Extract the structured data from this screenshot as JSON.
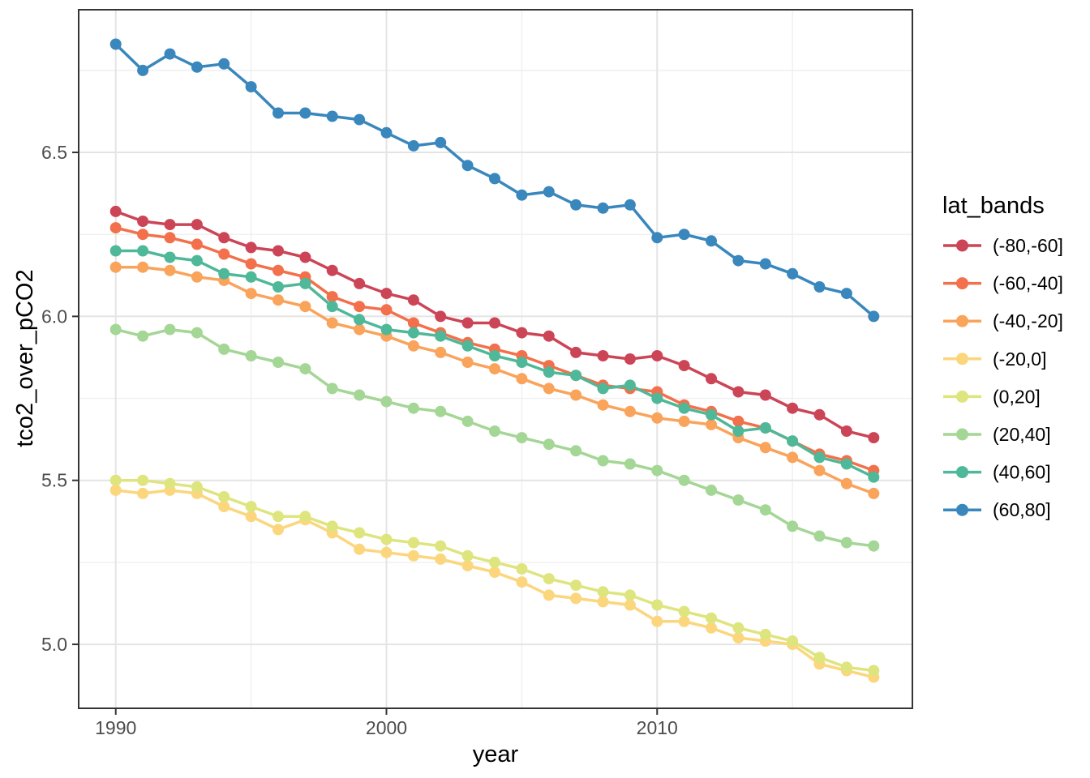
{
  "figure": {
    "xlabel": "year",
    "ylabel": "tco2_over_pCO2"
  },
  "legend": {
    "title": "lat_bands",
    "entries": [
      {
        "label": "(-80,-60]",
        "color": "#CB4557"
      },
      {
        "label": "(-60,-40]",
        "color": "#F2704B"
      },
      {
        "label": "(-40,-20]",
        "color": "#F9A35B"
      },
      {
        "label": "(-20,0]",
        "color": "#FBD67D"
      },
      {
        "label": "(0,20]",
        "color": "#DEE57E"
      },
      {
        "label": "(20,40]",
        "color": "#A4D695"
      },
      {
        "label": "(40,60]",
        "color": "#4FB898"
      },
      {
        "label": "(60,80]",
        "color": "#3987BC"
      }
    ]
  },
  "chart_data": {
    "type": "line",
    "title": "",
    "xlabel": "year",
    "ylabel": "tco2_over_pCO2",
    "legend_title": "lat_bands",
    "legend_position": "right",
    "grid": true,
    "x": [
      1990,
      1991,
      1992,
      1993,
      1994,
      1995,
      1996,
      1997,
      1998,
      1999,
      2000,
      2001,
      2002,
      2003,
      2004,
      2005,
      2006,
      2007,
      2008,
      2009,
      2010,
      2011,
      2012,
      2013,
      2014,
      2015,
      2016,
      2017,
      2018
    ],
    "x_ticks": [
      1990,
      2000,
      2010
    ],
    "x_tick_labels": [
      "1990",
      "2000",
      "2010"
    ],
    "x_minor_ticks": [
      1995,
      2005,
      2015
    ],
    "y_ticks": [
      5.0,
      5.5,
      6.0,
      6.5
    ],
    "y_tick_labels": [
      "5.0",
      "5.5",
      "6.0",
      "6.5"
    ],
    "y_minor_ticks": [
      5.25,
      5.75,
      6.25,
      6.75
    ],
    "xlim": [
      1988.63,
      2019.43
    ],
    "ylim": [
      4.805,
      6.935
    ],
    "series": [
      {
        "name": "(-80,-60]",
        "color": "#CB4557",
        "values": [
          6.32,
          6.29,
          6.28,
          6.28,
          6.24,
          6.21,
          6.2,
          6.18,
          6.14,
          6.1,
          6.07,
          6.05,
          6.0,
          5.98,
          5.98,
          5.95,
          5.94,
          5.89,
          5.88,
          5.87,
          5.88,
          5.85,
          5.81,
          5.77,
          5.76,
          5.72,
          5.7,
          5.65,
          5.63
        ]
      },
      {
        "name": "(-60,-40]",
        "color": "#F2704B",
        "values": [
          6.27,
          6.25,
          6.24,
          6.22,
          6.19,
          6.16,
          6.14,
          6.12,
          6.06,
          6.03,
          6.02,
          5.98,
          5.95,
          5.92,
          5.9,
          5.88,
          5.85,
          5.82,
          5.79,
          5.78,
          5.77,
          5.73,
          5.71,
          5.68,
          5.66,
          5.62,
          5.58,
          5.56,
          5.53
        ]
      },
      {
        "name": "(-40,-20]",
        "color": "#F9A35B",
        "values": [
          6.15,
          6.15,
          6.14,
          6.12,
          6.11,
          6.07,
          6.05,
          6.03,
          5.98,
          5.96,
          5.94,
          5.91,
          5.89,
          5.86,
          5.84,
          5.81,
          5.78,
          5.76,
          5.73,
          5.71,
          5.69,
          5.68,
          5.67,
          5.63,
          5.6,
          5.57,
          5.53,
          5.49,
          5.46
        ]
      },
      {
        "name": "(-20,0]",
        "color": "#FBD67D",
        "values": [
          5.47,
          5.46,
          5.47,
          5.46,
          5.42,
          5.39,
          5.35,
          5.38,
          5.34,
          5.29,
          5.28,
          5.27,
          5.26,
          5.24,
          5.22,
          5.19,
          5.15,
          5.14,
          5.13,
          5.12,
          5.07,
          5.07,
          5.05,
          5.02,
          5.01,
          5.0,
          4.94,
          4.92,
          4.9
        ]
      },
      {
        "name": "(0,20]",
        "color": "#DEE57E",
        "values": [
          5.5,
          5.5,
          5.49,
          5.48,
          5.45,
          5.42,
          5.39,
          5.39,
          5.36,
          5.34,
          5.32,
          5.31,
          5.3,
          5.27,
          5.25,
          5.23,
          5.2,
          5.18,
          5.16,
          5.15,
          5.12,
          5.1,
          5.08,
          5.05,
          5.03,
          5.01,
          4.96,
          4.93,
          4.92
        ]
      },
      {
        "name": "(20,40]",
        "color": "#A4D695",
        "values": [
          5.96,
          5.94,
          5.96,
          5.95,
          5.9,
          5.88,
          5.86,
          5.84,
          5.78,
          5.76,
          5.74,
          5.72,
          5.71,
          5.68,
          5.65,
          5.63,
          5.61,
          5.59,
          5.56,
          5.55,
          5.53,
          5.5,
          5.47,
          5.44,
          5.41,
          5.36,
          5.33,
          5.31,
          5.3
        ]
      },
      {
        "name": "(40,60]",
        "color": "#4FB898",
        "values": [
          6.2,
          6.2,
          6.18,
          6.17,
          6.13,
          6.12,
          6.09,
          6.1,
          6.03,
          5.99,
          5.96,
          5.95,
          5.94,
          5.91,
          5.88,
          5.86,
          5.83,
          5.82,
          5.78,
          5.79,
          5.75,
          5.72,
          5.7,
          5.65,
          5.66,
          5.62,
          5.57,
          5.55,
          5.51
        ]
      },
      {
        "name": "(60,80]",
        "color": "#3987BC",
        "values": [
          6.83,
          6.75,
          6.8,
          6.76,
          6.77,
          6.7,
          6.62,
          6.62,
          6.61,
          6.6,
          6.56,
          6.52,
          6.53,
          6.46,
          6.42,
          6.37,
          6.38,
          6.34,
          6.33,
          6.34,
          6.24,
          6.25,
          6.23,
          6.17,
          6.16,
          6.13,
          6.09,
          6.07,
          6.0
        ]
      }
    ],
    "style": {
      "panel_background": "#FFFFFF",
      "grid_major_color": "#E4E4E4",
      "grid_minor_color": "#EFEFEF",
      "panel_border_color": "#343434",
      "tick_color": "#343434",
      "tick_label_color": "#4D4D4D",
      "title_color": "#000000"
    }
  }
}
